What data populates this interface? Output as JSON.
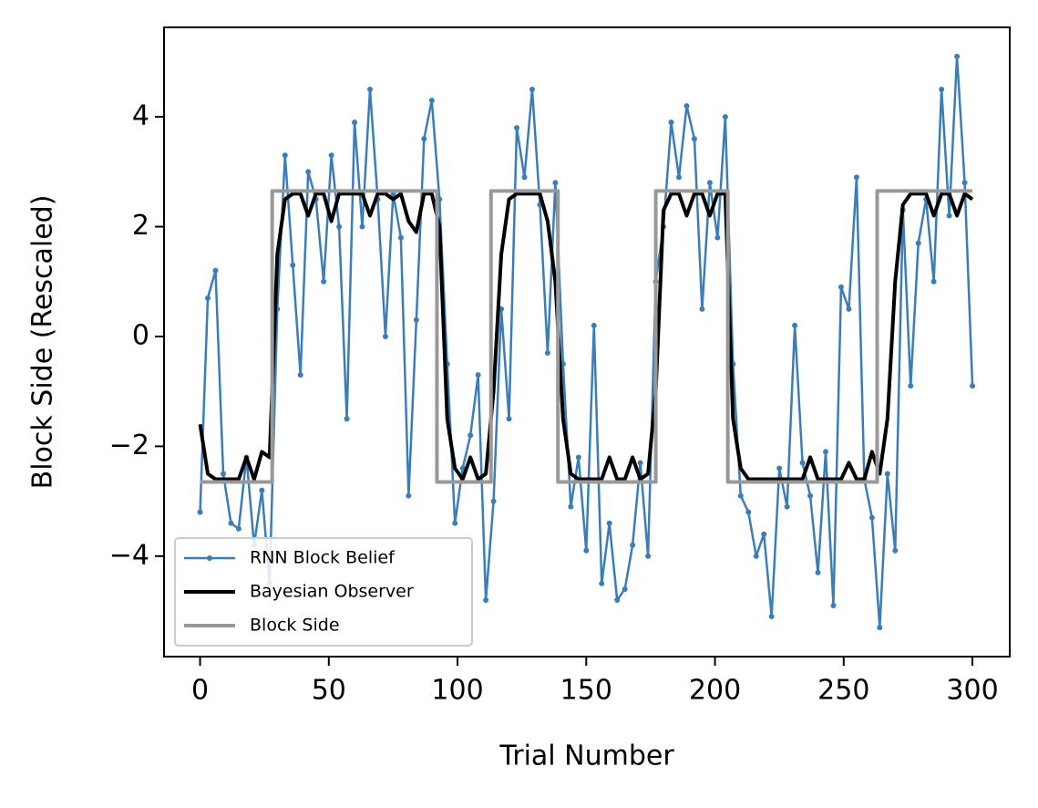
{
  "chart_data": {
    "type": "line",
    "xlabel": "Trial Number",
    "ylabel": "Block Side (Rescaled)",
    "xlim": [
      -14,
      314.5
    ],
    "ylim": [
      -5.83,
      5.63
    ],
    "xticks": [
      0,
      50,
      100,
      150,
      200,
      250,
      300
    ],
    "yticks": [
      {
        "value": -4,
        "label": "−4"
      },
      {
        "value": -2,
        "label": "−2"
      },
      0,
      2,
      4
    ],
    "legend": "lower left",
    "series": [
      {
        "name": "RNN Block Belief",
        "color": "#3a7db8",
        "markers": true,
        "x": [
          0,
          3,
          6,
          9,
          12,
          15,
          18,
          21,
          24,
          27,
          30,
          33,
          36,
          39,
          42,
          45,
          48,
          51,
          54,
          57,
          60,
          63,
          66,
          69,
          72,
          75,
          78,
          81,
          84,
          87,
          90,
          93,
          96,
          99,
          102,
          105,
          108,
          111,
          114,
          117,
          120,
          123,
          126,
          129,
          132,
          135,
          138,
          141,
          144,
          147,
          150,
          153,
          156,
          159,
          162,
          165,
          168,
          171,
          174,
          177,
          180,
          183,
          186,
          189,
          192,
          195,
          198,
          201,
          204,
          207,
          210,
          213,
          216,
          219,
          222,
          225,
          228,
          231,
          234,
          237,
          240,
          243,
          246,
          249,
          252,
          255,
          258,
          261,
          264,
          267,
          270,
          273,
          276,
          279,
          282,
          285,
          288,
          291,
          294,
          297,
          300
        ],
        "values": [
          -3.2,
          0.7,
          1.2,
          -2.5,
          -3.4,
          -3.5,
          -2.2,
          -3.8,
          -2.8,
          -4.5,
          0.5,
          3.3,
          1.3,
          -0.7,
          3.0,
          2.5,
          1.0,
          3.3,
          2.0,
          -1.5,
          3.9,
          2.0,
          4.5,
          2.5,
          0.0,
          2.6,
          1.8,
          -2.9,
          0.3,
          3.6,
          4.3,
          2.5,
          -0.5,
          -3.4,
          -2.4,
          -1.8,
          -0.7,
          -4.8,
          -3.0,
          0.5,
          -1.5,
          3.8,
          2.9,
          4.5,
          2.4,
          -0.3,
          2.8,
          -0.5,
          -3.1,
          -2.2,
          -3.9,
          0.2,
          -4.5,
          -3.4,
          -4.8,
          -4.6,
          -3.8,
          -2.3,
          -4.0,
          1.0,
          2.0,
          3.9,
          2.9,
          4.2,
          3.6,
          0.5,
          2.8,
          1.8,
          4.0,
          -0.5,
          -2.9,
          -3.2,
          -4.0,
          -3.6,
          -5.1,
          -2.4,
          -3.1,
          0.2,
          -2.3,
          -2.9,
          -4.3,
          -2.1,
          -4.9,
          0.9,
          0.5,
          2.9,
          -2.6,
          -3.3,
          -5.3,
          -2.5,
          -3.9,
          2.3,
          -0.9,
          1.7,
          2.5,
          1.0,
          4.5,
          2.2,
          5.1,
          2.8,
          -0.9
        ]
      },
      {
        "name": "Bayesian Observer",
        "color": "#000000",
        "markers": false,
        "x": [
          0,
          3,
          6,
          9,
          12,
          15,
          18,
          21,
          24,
          27,
          30,
          33,
          36,
          39,
          42,
          45,
          48,
          51,
          54,
          57,
          60,
          63,
          66,
          69,
          72,
          75,
          78,
          81,
          84,
          87,
          90,
          93,
          96,
          99,
          102,
          105,
          108,
          111,
          114,
          117,
          120,
          123,
          126,
          129,
          132,
          135,
          138,
          141,
          144,
          147,
          150,
          153,
          156,
          159,
          162,
          165,
          168,
          171,
          174,
          177,
          180,
          183,
          186,
          189,
          192,
          195,
          198,
          201,
          204,
          207,
          210,
          213,
          216,
          219,
          222,
          225,
          228,
          231,
          234,
          237,
          240,
          243,
          246,
          249,
          252,
          255,
          258,
          261,
          264,
          267,
          270,
          273,
          276,
          279,
          282,
          285,
          288,
          291,
          294,
          297,
          300
        ],
        "values": [
          -1.6,
          -2.5,
          -2.6,
          -2.6,
          -2.6,
          -2.6,
          -2.2,
          -2.6,
          -2.1,
          -2.2,
          1.5,
          2.5,
          2.6,
          2.6,
          2.2,
          2.6,
          2.6,
          2.1,
          2.6,
          2.6,
          2.6,
          2.6,
          2.2,
          2.6,
          2.6,
          2.5,
          2.6,
          2.1,
          1.9,
          2.6,
          2.6,
          2.0,
          -1.5,
          -2.4,
          -2.6,
          -2.2,
          -2.6,
          -2.5,
          -1.0,
          1.5,
          2.5,
          2.6,
          2.6,
          2.6,
          2.6,
          2.1,
          1.0,
          -1.5,
          -2.5,
          -2.6,
          -2.6,
          -2.6,
          -2.6,
          -2.2,
          -2.6,
          -2.6,
          -2.2,
          -2.6,
          -2.5,
          -1.0,
          2.3,
          2.6,
          2.6,
          2.2,
          2.6,
          2.6,
          2.2,
          2.6,
          2.6,
          -1.5,
          -2.4,
          -2.6,
          -2.6,
          -2.6,
          -2.6,
          -2.6,
          -2.6,
          -2.6,
          -2.6,
          -2.2,
          -2.6,
          -2.6,
          -2.6,
          -2.6,
          -2.3,
          -2.6,
          -2.6,
          -2.1,
          -2.5,
          -1.5,
          1.0,
          2.4,
          2.6,
          2.6,
          2.6,
          2.2,
          2.6,
          2.6,
          2.2,
          2.6,
          2.5
        ]
      },
      {
        "name": "Block Side",
        "color": "#999999",
        "markers": false,
        "x": [
          0,
          28,
          28,
          92,
          92,
          113,
          113,
          139,
          139,
          177,
          177,
          205,
          205,
          263,
          263,
          300
        ],
        "values": [
          -2.65,
          -2.65,
          2.65,
          2.65,
          -2.65,
          -2.65,
          2.65,
          2.65,
          -2.65,
          -2.65,
          2.65,
          2.65,
          -2.65,
          -2.65,
          2.65,
          2.65
        ]
      }
    ]
  }
}
